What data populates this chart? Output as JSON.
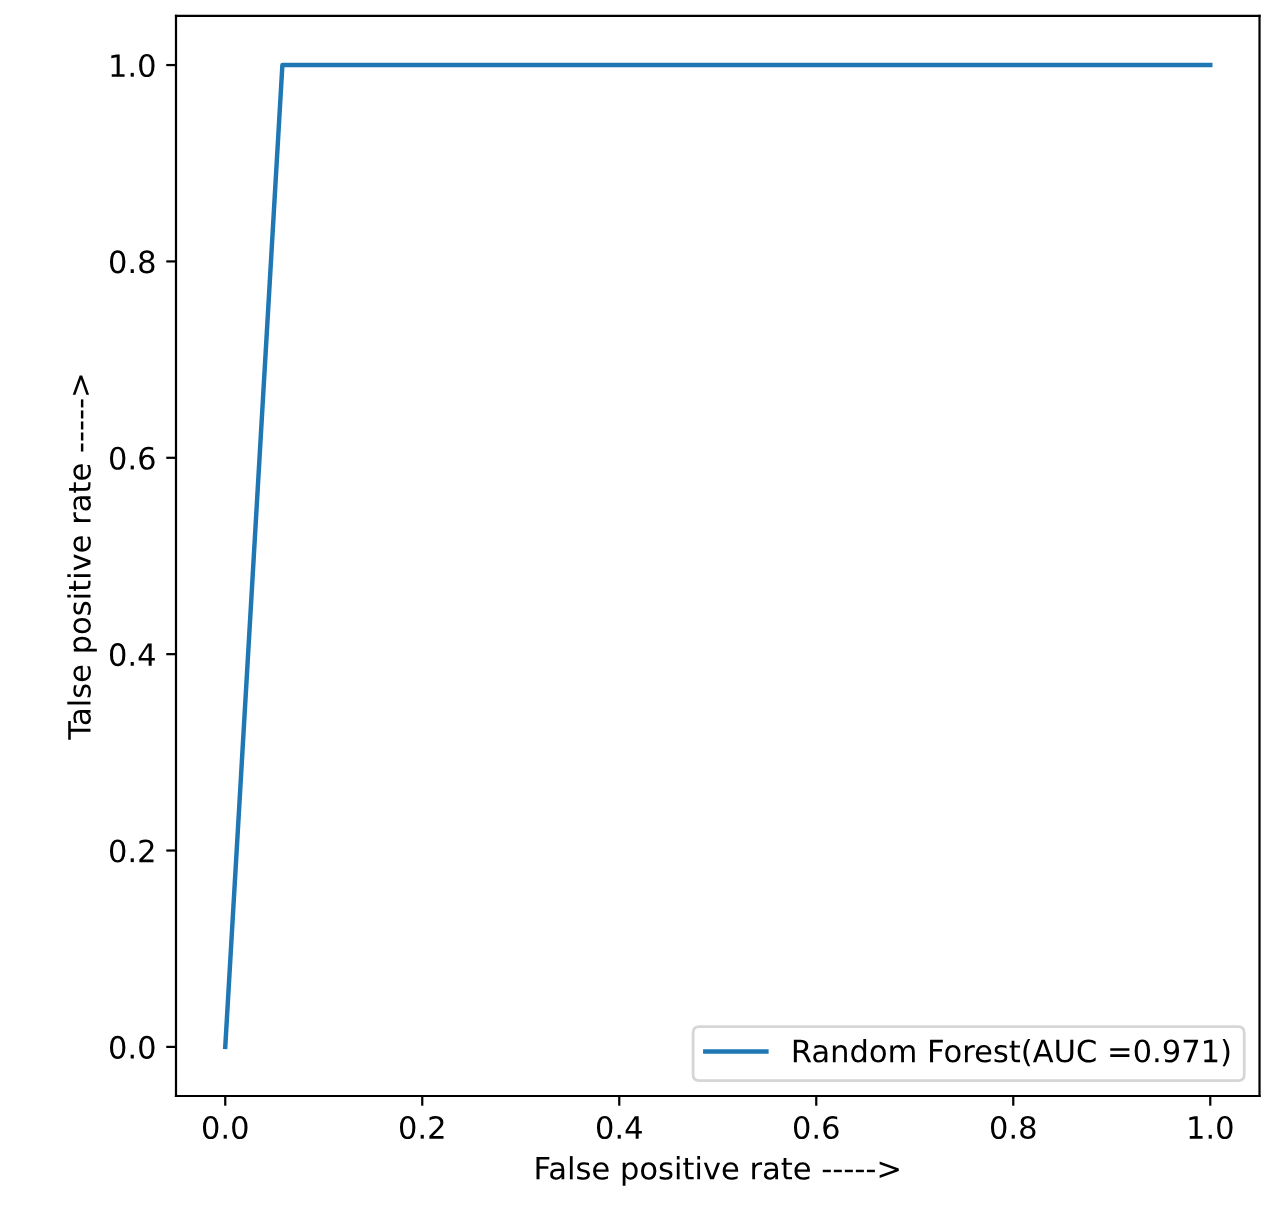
{
  "chart_data": {
    "type": "line",
    "xlabel": "False positive rate ----->",
    "ylabel": "Talse positive rate ----->",
    "series": [
      {
        "name": "Random Forest(AUC =0.971)",
        "color": "#1f77b4",
        "x": [
          0,
          0.058,
          1
        ],
        "values": [
          0,
          1,
          1
        ]
      }
    ],
    "xlim": [
      -0.05,
      1.05
    ],
    "ylim": [
      -0.05,
      1.05
    ],
    "xticks": [
      {
        "value": 0,
        "label": "0.0"
      },
      0.2,
      0.4,
      0.6,
      0.8,
      {
        "value": 1,
        "label": "1.0"
      }
    ],
    "yticks": [
      {
        "value": 0,
        "label": "0.0"
      },
      0.2,
      0.4,
      0.6,
      0.8,
      {
        "value": 1,
        "label": "1.0"
      }
    ],
    "legend": "bottom right",
    "grid": false
  }
}
